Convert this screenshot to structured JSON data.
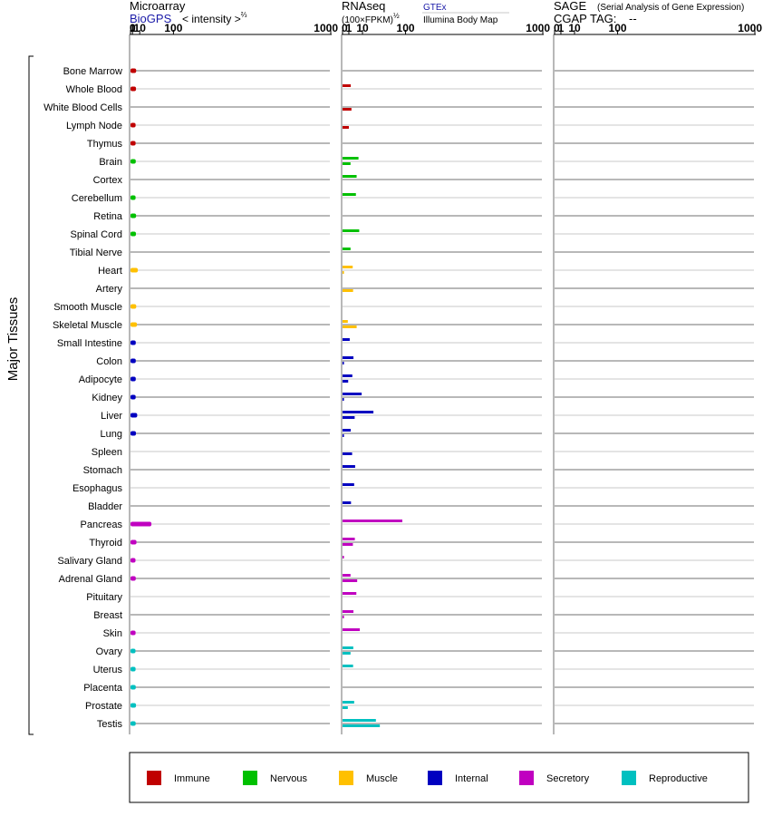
{
  "header": {
    "microarray": {
      "title": "Microarray",
      "source_link": "BioGPS",
      "unit_text": "< intensity >",
      "unit_exponent": "2/3"
    },
    "rnaseq": {
      "title": "RNAseq",
      "unit_text": "(100×FPKM)",
      "unit_exponent": "1/2",
      "source_gtex": "GTEx",
      "source_ibm": "Illumina Body Map"
    },
    "sage": {
      "title": "SAGE",
      "subtitle": "(Serial Analysis of Gene Expression)",
      "tag_label": "CGAP TAG:",
      "tag_value": "--"
    }
  },
  "y_axis_label": "Major Tissues",
  "colors": {
    "Immune": "#c00000",
    "Nervous": "#00c000",
    "Muscle": "#ffc000",
    "Internal": "#0000c0",
    "Secretory": "#c000c0",
    "Reproductive": "#00c0c0",
    "row_line_dark": "#707070",
    "row_line_light": "#c8c8c8"
  },
  "legend": [
    "Immune",
    "Nervous",
    "Muscle",
    "Internal",
    "Secretory",
    "Reproductive"
  ],
  "chart_data": {
    "type": "bar",
    "axis_scale": "power",
    "panels": [
      {
        "name": "Microarray",
        "exponent": 0.6667,
        "ticks": [
          "0",
          "1",
          "10",
          "100",
          "1000"
        ],
        "tick_values": [
          0,
          1,
          10,
          100,
          1000
        ],
        "xlim": [
          0,
          1000
        ]
      },
      {
        "name": "RNAseq",
        "exponent": 0.5,
        "ticks": [
          "0",
          "1",
          "10",
          "100",
          "1000"
        ],
        "tick_values": [
          0,
          1,
          10,
          100,
          1000
        ],
        "xlim": [
          0,
          1000
        ]
      },
      {
        "name": "SAGE",
        "exponent": 0.5,
        "ticks": [
          "0",
          "1",
          "10",
          "100",
          "1000"
        ],
        "tick_values": [
          0,
          1,
          10,
          100,
          1000
        ],
        "xlim": [
          0,
          1000
        ]
      }
    ],
    "tissues": [
      {
        "name": "Bone Marrow",
        "group": "Immune",
        "microarray": 4.8,
        "gtex": null,
        "ibm": null
      },
      {
        "name": "Whole Blood",
        "group": "Immune",
        "microarray": 4.6,
        "gtex": 1.7,
        "ibm": null
      },
      {
        "name": "White Blood Cells",
        "group": "Immune",
        "microarray": null,
        "gtex": null,
        "ibm": 2.0
      },
      {
        "name": "Lymph Node",
        "group": "Immune",
        "microarray": 4.1,
        "gtex": null,
        "ibm": 1.0
      },
      {
        "name": "Thymus",
        "group": "Immune",
        "microarray": 4.1,
        "gtex": null,
        "ibm": null
      },
      {
        "name": "Brain",
        "group": "Nervous",
        "microarray": 4.3,
        "gtex": 6.4,
        "ibm": 1.6
      },
      {
        "name": "Cortex",
        "group": "Nervous",
        "microarray": null,
        "gtex": 5.0,
        "ibm": null
      },
      {
        "name": "Cerebellum",
        "group": "Nervous",
        "microarray": 4.1,
        "gtex": 4.5,
        "ibm": null
      },
      {
        "name": "Retina",
        "group": "Nervous",
        "microarray": 4.7,
        "gtex": null,
        "ibm": null
      },
      {
        "name": "Spinal Cord",
        "group": "Nervous",
        "microarray": 4.5,
        "gtex": 7.0,
        "ibm": null
      },
      {
        "name": "Tibial Nerve",
        "group": "Nervous",
        "microarray": null,
        "gtex": 1.6,
        "ibm": null
      },
      {
        "name": "Heart",
        "group": "Muscle",
        "microarray": 7.0,
        "gtex": 2.6,
        "ibm": 0.05
      },
      {
        "name": "Artery",
        "group": "Muscle",
        "microarray": null,
        "gtex": null,
        "ibm": 2.8
      },
      {
        "name": "Smooth Muscle",
        "group": "Muscle",
        "microarray": 4.9,
        "gtex": null,
        "ibm": null
      },
      {
        "name": "Skeletal Muscle",
        "group": "Muscle",
        "microarray": 5.8,
        "gtex": 0.7,
        "ibm": 5.0
      },
      {
        "name": "Small Intestine",
        "group": "Internal",
        "microarray": 4.3,
        "gtex": 1.3,
        "ibm": null
      },
      {
        "name": "Colon",
        "group": "Internal",
        "microarray": 4.3,
        "gtex": 3.0,
        "ibm": 0.05
      },
      {
        "name": "Adipocyte",
        "group": "Internal",
        "microarray": 4.3,
        "gtex": 2.4,
        "ibm": 0.8
      },
      {
        "name": "Kidney",
        "group": "Internal",
        "microarray": 4.2,
        "gtex": 9.2,
        "ibm": 0.05
      },
      {
        "name": "Liver",
        "group": "Internal",
        "microarray": 6.2,
        "gtex": 24.0,
        "ibm": 3.7
      },
      {
        "name": "Lung",
        "group": "Internal",
        "microarray": 4.5,
        "gtex": 1.7,
        "ibm": 0.05
      },
      {
        "name": "Spleen",
        "group": "Internal",
        "microarray": null,
        "gtex": null,
        "ibm": 2.3
      },
      {
        "name": "Stomach",
        "group": "Internal",
        "microarray": null,
        "gtex": 4.0,
        "ibm": null
      },
      {
        "name": "Esophagus",
        "group": "Internal",
        "microarray": null,
        "gtex": 3.4,
        "ibm": null
      },
      {
        "name": "Bladder",
        "group": "Internal",
        "microarray": null,
        "gtex": 1.8,
        "ibm": null
      },
      {
        "name": "Pancreas",
        "group": "Secretory",
        "microarray": 34.0,
        "gtex": 90.0,
        "ibm": null
      },
      {
        "name": "Thyroid",
        "group": "Secretory",
        "microarray": 5.2,
        "gtex": 3.8,
        "ibm": 2.7
      },
      {
        "name": "Salivary Gland",
        "group": "Secretory",
        "microarray": 4.0,
        "gtex": 0.05,
        "ibm": null
      },
      {
        "name": "Adrenal Gland",
        "group": "Secretory",
        "microarray": 4.3,
        "gtex": 1.6,
        "ibm": 5.4
      },
      {
        "name": "Pituitary",
        "group": "Secretory",
        "microarray": null,
        "gtex": 4.8,
        "ibm": null
      },
      {
        "name": "Breast",
        "group": "Secretory",
        "microarray": null,
        "gtex": 3.0,
        "ibm": 0.05
      },
      {
        "name": "Skin",
        "group": "Secretory",
        "microarray": 4.1,
        "gtex": 7.5,
        "ibm": null
      },
      {
        "name": "Ovary",
        "group": "Reproductive",
        "microarray": 4.0,
        "gtex": 2.9,
        "ibm": 1.6
      },
      {
        "name": "Uterus",
        "group": "Reproductive",
        "microarray": 4.1,
        "gtex": 2.8,
        "ibm": null
      },
      {
        "name": "Placenta",
        "group": "Reproductive",
        "microarray": 4.3,
        "gtex": null,
        "ibm": null
      },
      {
        "name": "Prostate",
        "group": "Reproductive",
        "microarray": 4.6,
        "gtex": 3.4,
        "ibm": 0.7
      },
      {
        "name": "Testis",
        "group": "Reproductive",
        "microarray": 4.2,
        "gtex": 28.0,
        "ibm": 35.0
      }
    ]
  }
}
